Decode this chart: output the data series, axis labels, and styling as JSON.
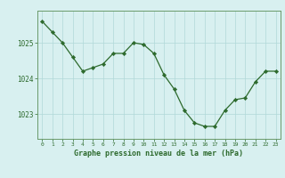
{
  "hours": [
    0,
    1,
    2,
    3,
    4,
    5,
    6,
    7,
    8,
    9,
    10,
    11,
    12,
    13,
    14,
    15,
    16,
    17,
    18,
    19,
    20,
    21,
    22,
    23
  ],
  "pressure": [
    1025.6,
    1025.3,
    1025.0,
    1024.6,
    1024.2,
    1024.3,
    1024.4,
    1024.7,
    1024.7,
    1025.0,
    1024.95,
    1024.7,
    1024.1,
    1023.7,
    1023.1,
    1022.75,
    1022.65,
    1022.65,
    1023.1,
    1023.4,
    1023.45,
    1023.9,
    1024.2,
    1024.2
  ],
  "line_color": "#2d6a2d",
  "marker_color": "#2d6a2d",
  "bg_color": "#d8f0f0",
  "grid_color": "#b0d8d8",
  "axis_label_color": "#2d6a2d",
  "tick_color": "#2d6a2d",
  "border_color": "#6a9a6a",
  "xlabel": "Graphe pression niveau de la mer (hPa)",
  "yticks": [
    1023,
    1024,
    1025
  ],
  "ylim": [
    1022.3,
    1025.9
  ],
  "xlim": [
    -0.5,
    23.5
  ]
}
